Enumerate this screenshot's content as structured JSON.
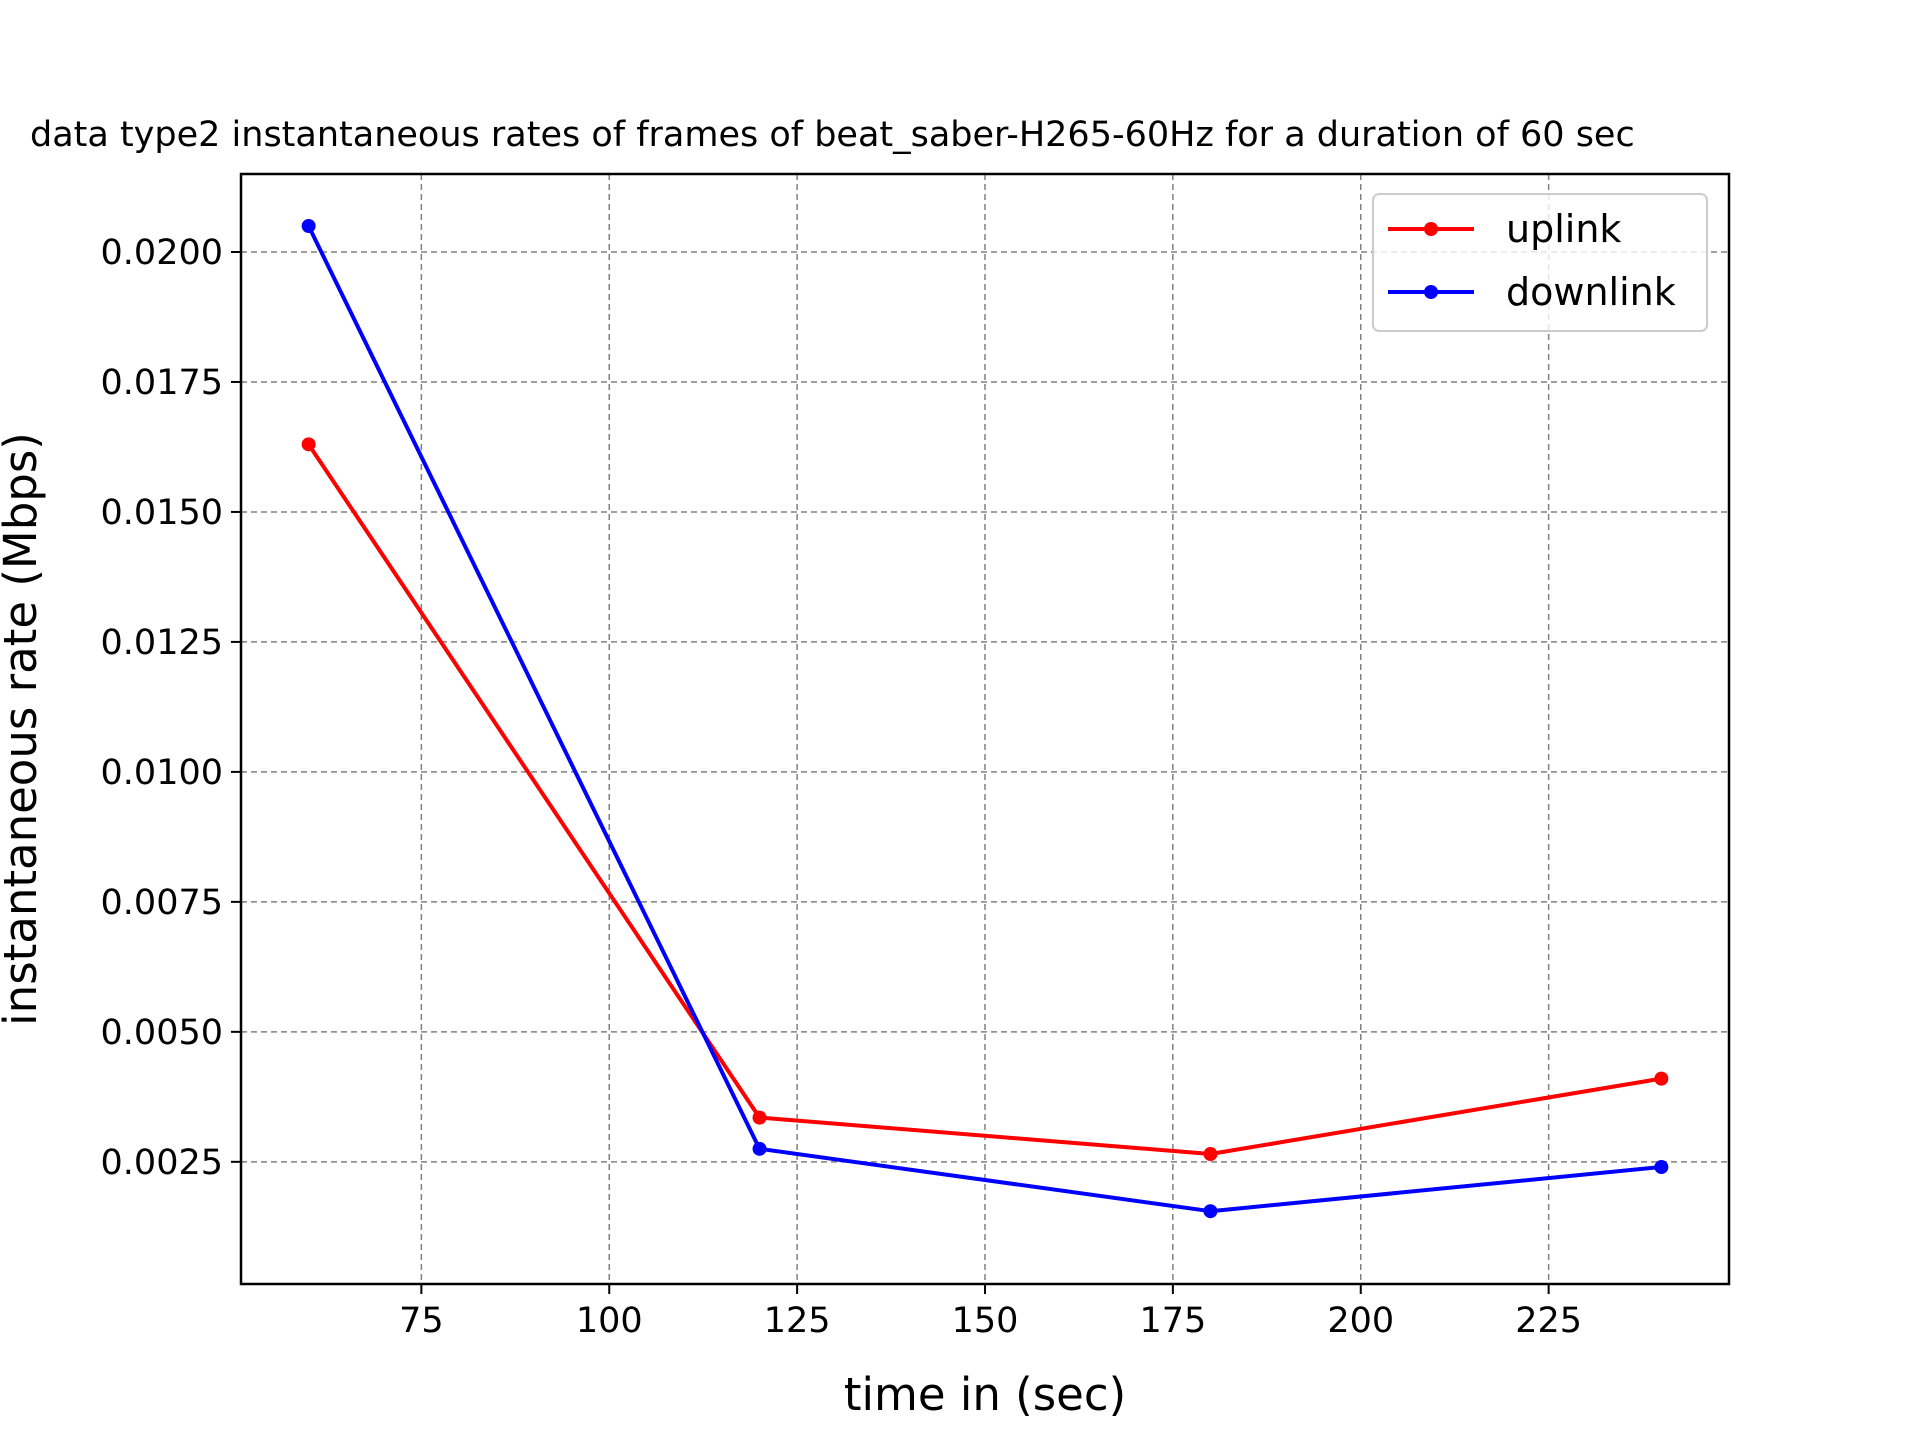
{
  "chart_data": {
    "type": "line",
    "title": "data type2 instantaneous rates of frames of beat_saber-H265-60Hz for a duration of 60 sec",
    "xlabel": "time in (sec)",
    "ylabel": "instantaneous rate (Mbps)",
    "xlim": [
      51,
      249
    ],
    "ylim": [
      0.00015,
      0.0215
    ],
    "xticks": [
      75,
      100,
      125,
      150,
      175,
      200,
      225
    ],
    "xtick_labels": [
      "75",
      "100",
      "125",
      "150",
      "175",
      "200",
      "225"
    ],
    "yticks": [
      0.0025,
      0.005,
      0.0075,
      0.01,
      0.0125,
      0.015,
      0.0175,
      0.02
    ],
    "ytick_labels": [
      "0.0025",
      "0.0050",
      "0.0075",
      "0.0100",
      "0.0125",
      "0.0150",
      "0.0175",
      "0.0200"
    ],
    "grid": true,
    "legend_position": "top-right",
    "x": [
      60,
      120,
      180,
      240
    ],
    "series": [
      {
        "name": "uplink",
        "color": "#ff0000",
        "values": [
          0.0163,
          0.00335,
          0.00265,
          0.0041
        ]
      },
      {
        "name": "downlink",
        "color": "#0000ff",
        "values": [
          0.0205,
          0.00275,
          0.00155,
          0.0024
        ]
      }
    ]
  }
}
